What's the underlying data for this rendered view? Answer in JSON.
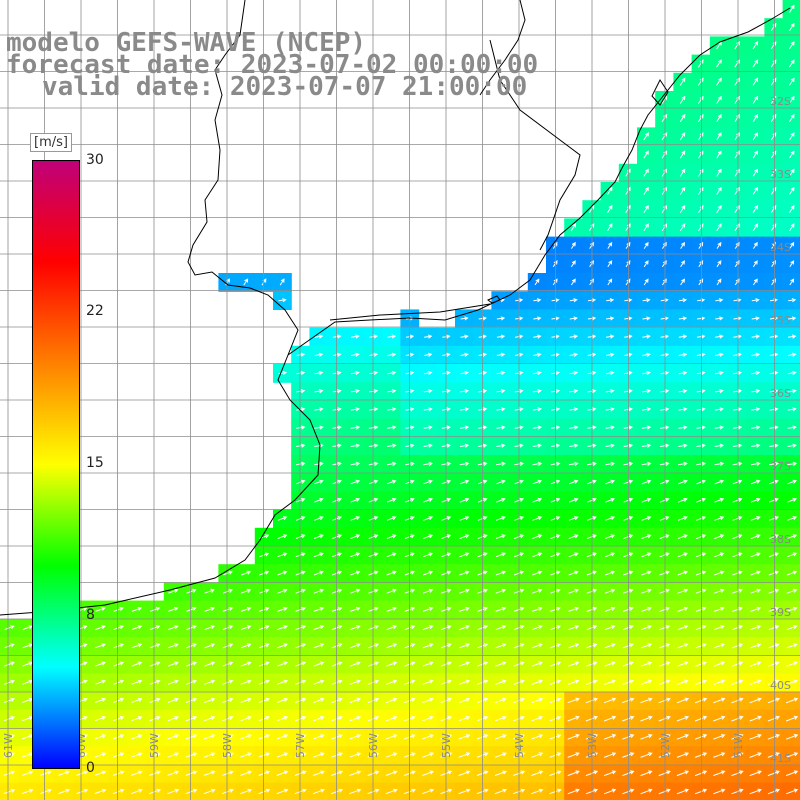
{
  "title": {
    "line1": "modelo GEFS-WAVE (NCEP)",
    "line2": "forecast date: 2023-07-02 00:00:00",
    "line3": "valid date: 2023-07-07 21:00:00"
  },
  "colorbar": {
    "unit": "[m/s]",
    "ticks": [
      "30",
      "22",
      "15",
      "8",
      "0"
    ],
    "tick_values": [
      30,
      22,
      15,
      8,
      0
    ],
    "stops": [
      "#0000ff",
      "#00ffff",
      "#00ff00",
      "#ffff00",
      "#ff8000",
      "#ff0000",
      "#c0007a"
    ]
  },
  "map": {
    "variable": "wind speed and direction (m/s)",
    "lat_labels": [
      "32S",
      "33S",
      "34S",
      "35S",
      "36S",
      "37S",
      "38S",
      "39S",
      "40S",
      "41S"
    ],
    "lon_labels": [
      "61W",
      "60W",
      "59W",
      "58W",
      "57W",
      "56W",
      "55W",
      "54W",
      "53W",
      "52W",
      "51W"
    ],
    "colors": {
      "land": "#ffffff",
      "coast": "#000000",
      "grid": "#8c8c8c",
      "arrow": "#ffffff"
    }
  }
}
